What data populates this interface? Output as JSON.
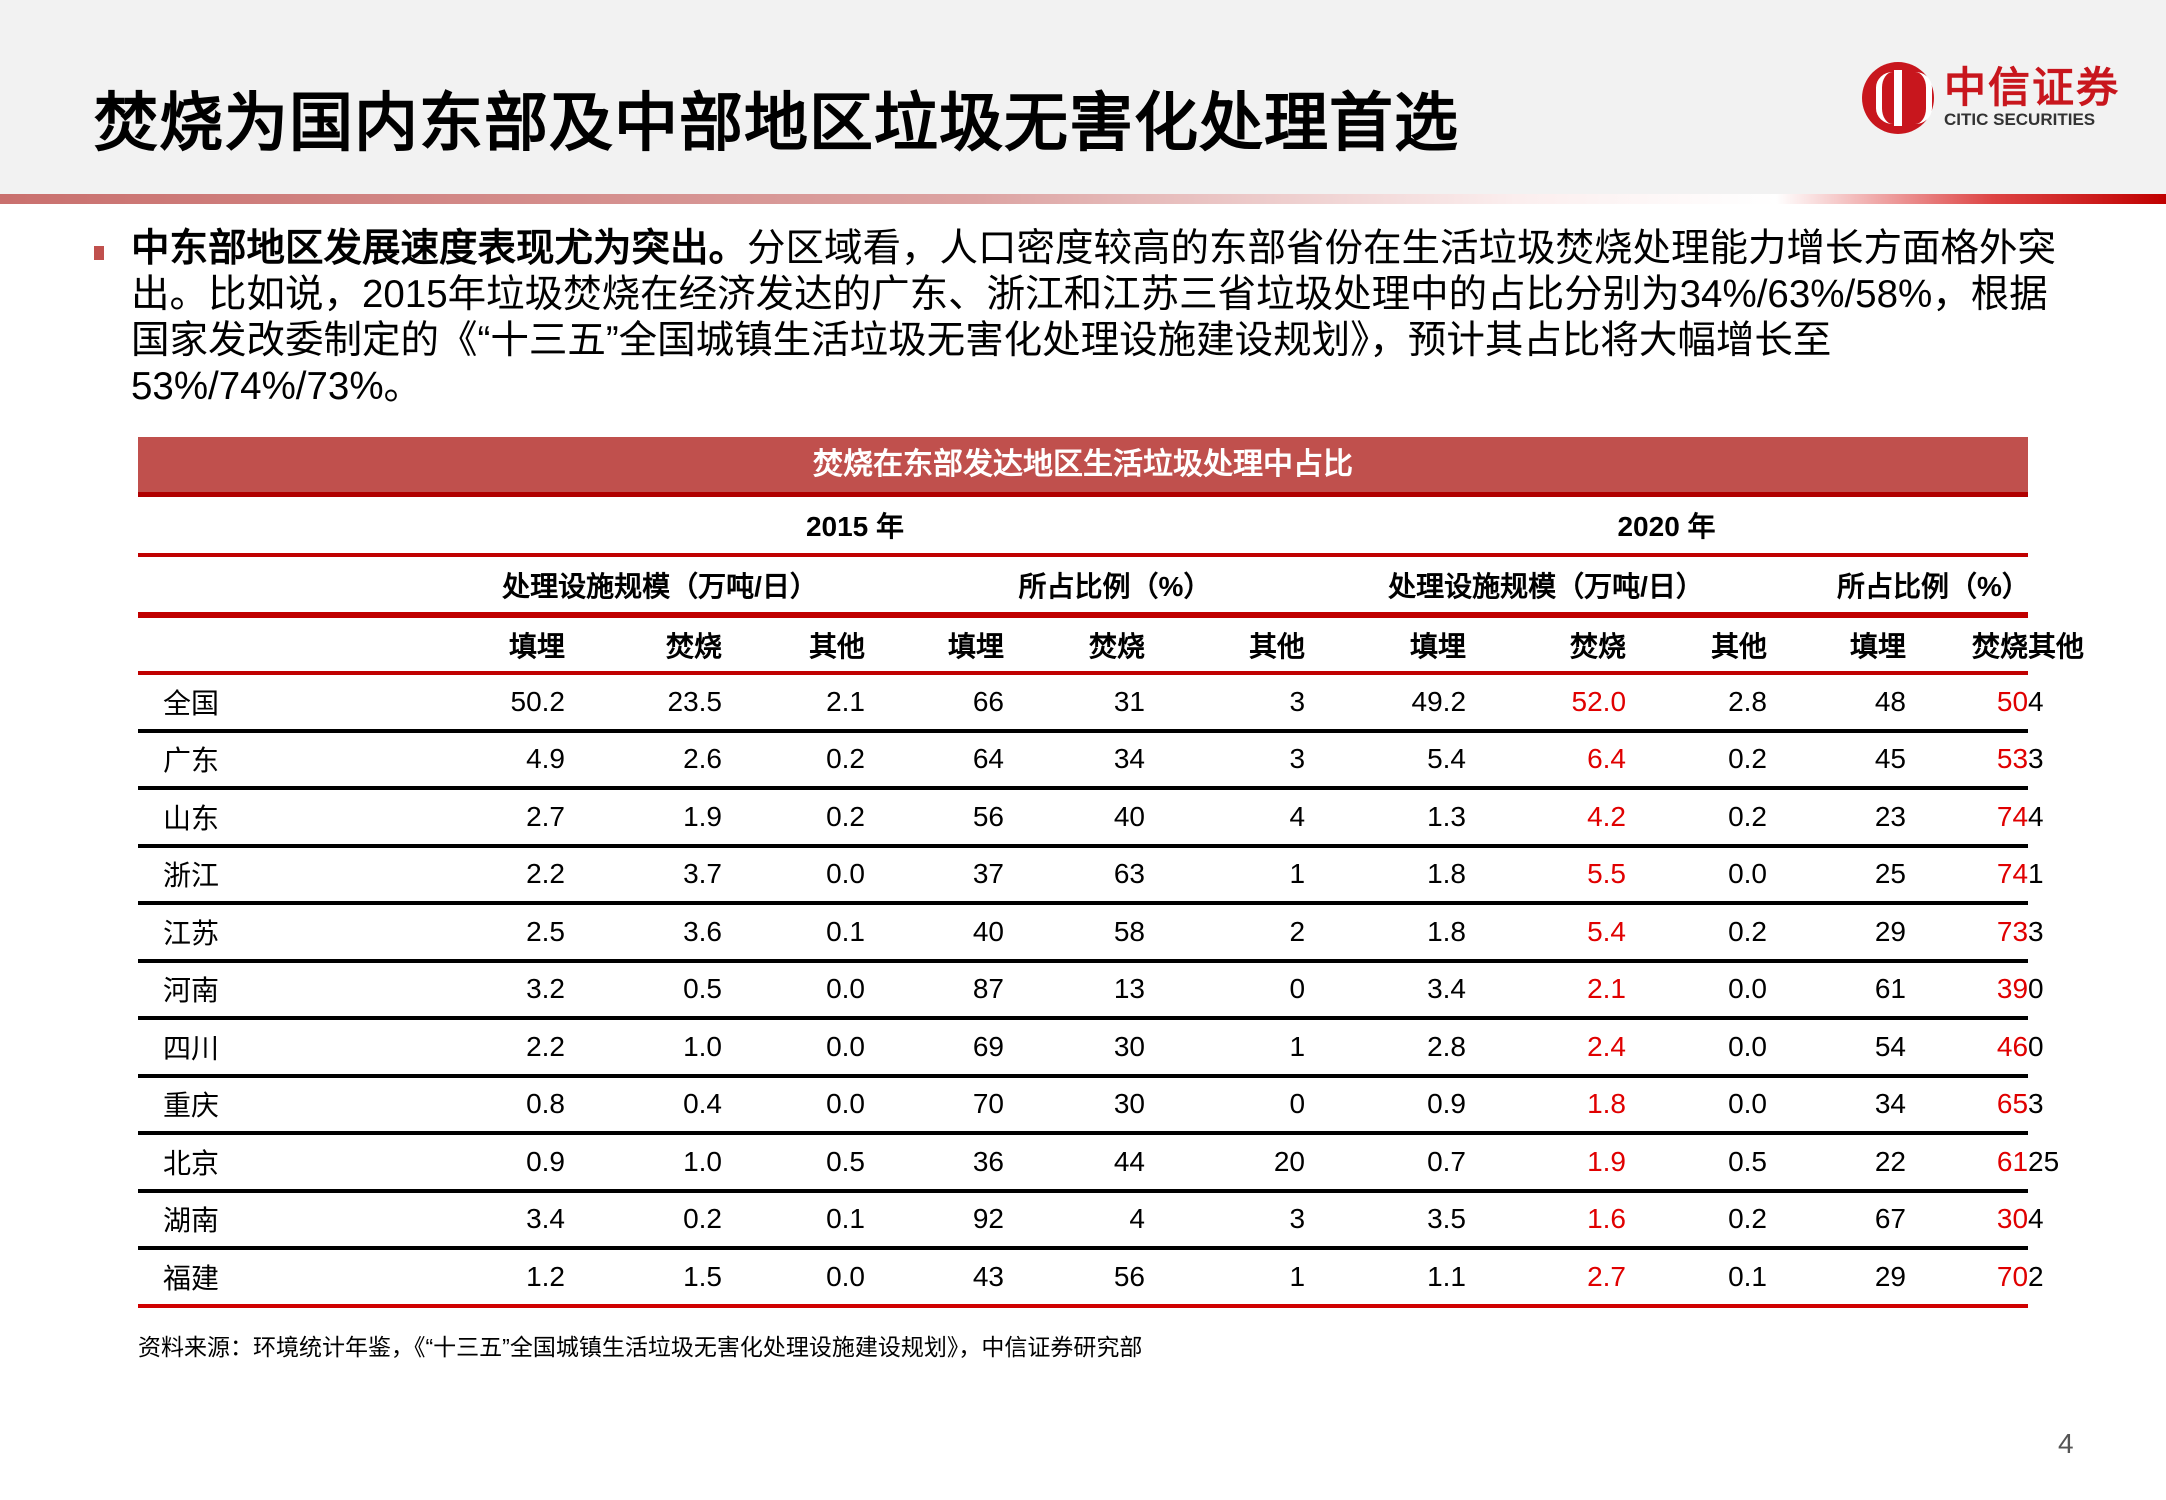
{
  "header": {
    "title": "焚烧为国内东部及中部地区垃圾无害化处理首选",
    "logo_cn": "中信证券",
    "logo_en": "CITIC SECURITIES",
    "brand_color": "#c8161d"
  },
  "body": {
    "lead": "中东部地区发展速度表现尤为突出。",
    "text": "分区域看，人口密度较高的东部省份在生活垃圾焚烧处理能力增长方面格外突出。比如说，2015年垃圾焚烧在经济发达的广东、浙江和江苏三省垃圾处理中的占比分别为34%/63%/58%，根据国家发改委制定的《“十三五”全国城镇生活垃圾无害化处理设施建设规划》，预计其占比将大幅增长至53%/74%/73%。"
  },
  "table": {
    "title": "焚烧在东部发达地区生活垃圾处理中占比",
    "years": [
      "2015 年",
      "2020 年"
    ],
    "groups": [
      "处理设施规模（万吨/日）",
      "所占比例（%）",
      "处理设施规模（万吨/日）",
      "所占比例（%）"
    ],
    "subheaders": [
      "填埋",
      "焚烧",
      "其他",
      "填埋",
      "焚烧",
      "其他",
      "填埋",
      "焚烧",
      "其他",
      "填埋",
      "焚烧",
      "其他"
    ],
    "highlight_color": "#e00000",
    "rows": [
      {
        "region": "全国",
        "values": [
          "50.2",
          "23.5",
          "2.1",
          "66",
          "31",
          "3",
          "49.2",
          "52.0",
          "2.8",
          "48",
          "50",
          "4"
        ]
      },
      {
        "region": "广东",
        "values": [
          "4.9",
          "2.6",
          "0.2",
          "64",
          "34",
          "3",
          "5.4",
          "6.4",
          "0.2",
          "45",
          "53",
          "3"
        ]
      },
      {
        "region": "山东",
        "values": [
          "2.7",
          "1.9",
          "0.2",
          "56",
          "40",
          "4",
          "1.3",
          "4.2",
          "0.2",
          "23",
          "74",
          "4"
        ]
      },
      {
        "region": "浙江",
        "values": [
          "2.2",
          "3.7",
          "0.0",
          "37",
          "63",
          "1",
          "1.8",
          "5.5",
          "0.0",
          "25",
          "74",
          "1"
        ]
      },
      {
        "region": "江苏",
        "values": [
          "2.5",
          "3.6",
          "0.1",
          "40",
          "58",
          "2",
          "1.8",
          "5.4",
          "0.2",
          "29",
          "73",
          "3"
        ]
      },
      {
        "region": "河南",
        "values": [
          "3.2",
          "0.5",
          "0.0",
          "87",
          "13",
          "0",
          "3.4",
          "2.1",
          "0.0",
          "61",
          "39",
          "0"
        ]
      },
      {
        "region": "四川",
        "values": [
          "2.2",
          "1.0",
          "0.0",
          "69",
          "30",
          "1",
          "2.8",
          "2.4",
          "0.0",
          "54",
          "46",
          "0"
        ]
      },
      {
        "region": "重庆",
        "values": [
          "0.8",
          "0.4",
          "0.0",
          "70",
          "30",
          "0",
          "0.9",
          "1.8",
          "0.0",
          "34",
          "65",
          "3"
        ]
      },
      {
        "region": "北京",
        "values": [
          "0.9",
          "1.0",
          "0.5",
          "36",
          "44",
          "20",
          "0.7",
          "1.9",
          "0.5",
          "22",
          "61",
          "25"
        ]
      },
      {
        "region": "湖南",
        "values": [
          "3.4",
          "0.2",
          "0.1",
          "92",
          "4",
          "3",
          "3.5",
          "1.6",
          "0.2",
          "67",
          "30",
          "4"
        ]
      },
      {
        "region": "福建",
        "values": [
          "1.2",
          "1.5",
          "0.0",
          "43",
          "56",
          "1",
          "1.1",
          "2.7",
          "0.1",
          "29",
          "70",
          "2"
        ]
      }
    ]
  },
  "source": "资料来源：环境统计年鉴，《“十三五”全国城镇生活垃圾无害化处理设施建设规划》，中信证券研究部",
  "page_number": "4"
}
